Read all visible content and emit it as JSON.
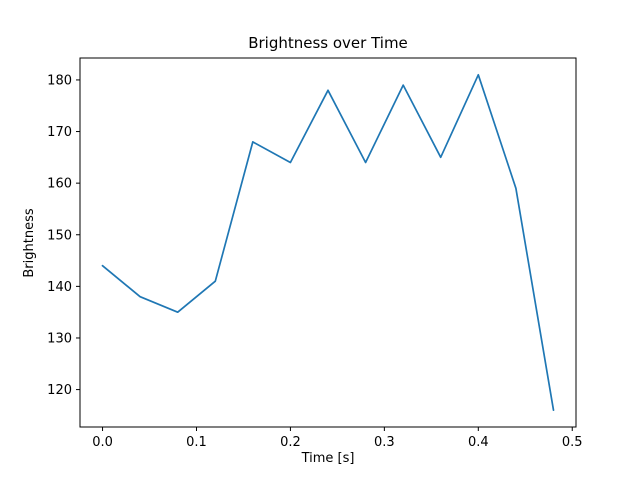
{
  "chart_data": {
    "type": "line",
    "title": "Brightness over Time",
    "xlabel": "Time [s]",
    "ylabel": "Brightness",
    "x": [
      0.0,
      0.04,
      0.08,
      0.12,
      0.16,
      0.2,
      0.24,
      0.28,
      0.32,
      0.36,
      0.4,
      0.44,
      0.48
    ],
    "values": [
      144,
      138,
      135,
      141,
      168,
      164,
      178,
      164,
      179,
      165,
      181,
      159,
      116
    ],
    "xlim": [
      -0.024,
      0.504
    ],
    "ylim": [
      112.75,
      184.25
    ],
    "xticks": [
      0.0,
      0.1,
      0.2,
      0.3,
      0.4,
      0.5
    ],
    "xtick_labels": [
      "0.0",
      "0.1",
      "0.2",
      "0.3",
      "0.4",
      "0.5"
    ],
    "yticks": [
      120,
      130,
      140,
      150,
      160,
      170,
      180
    ],
    "ytick_labels": [
      "120",
      "130",
      "140",
      "150",
      "160",
      "170",
      "180"
    ],
    "line_color": "#1f77b4",
    "axis_color": "#000000",
    "background": "#ffffff",
    "grid": false,
    "legend": null
  }
}
